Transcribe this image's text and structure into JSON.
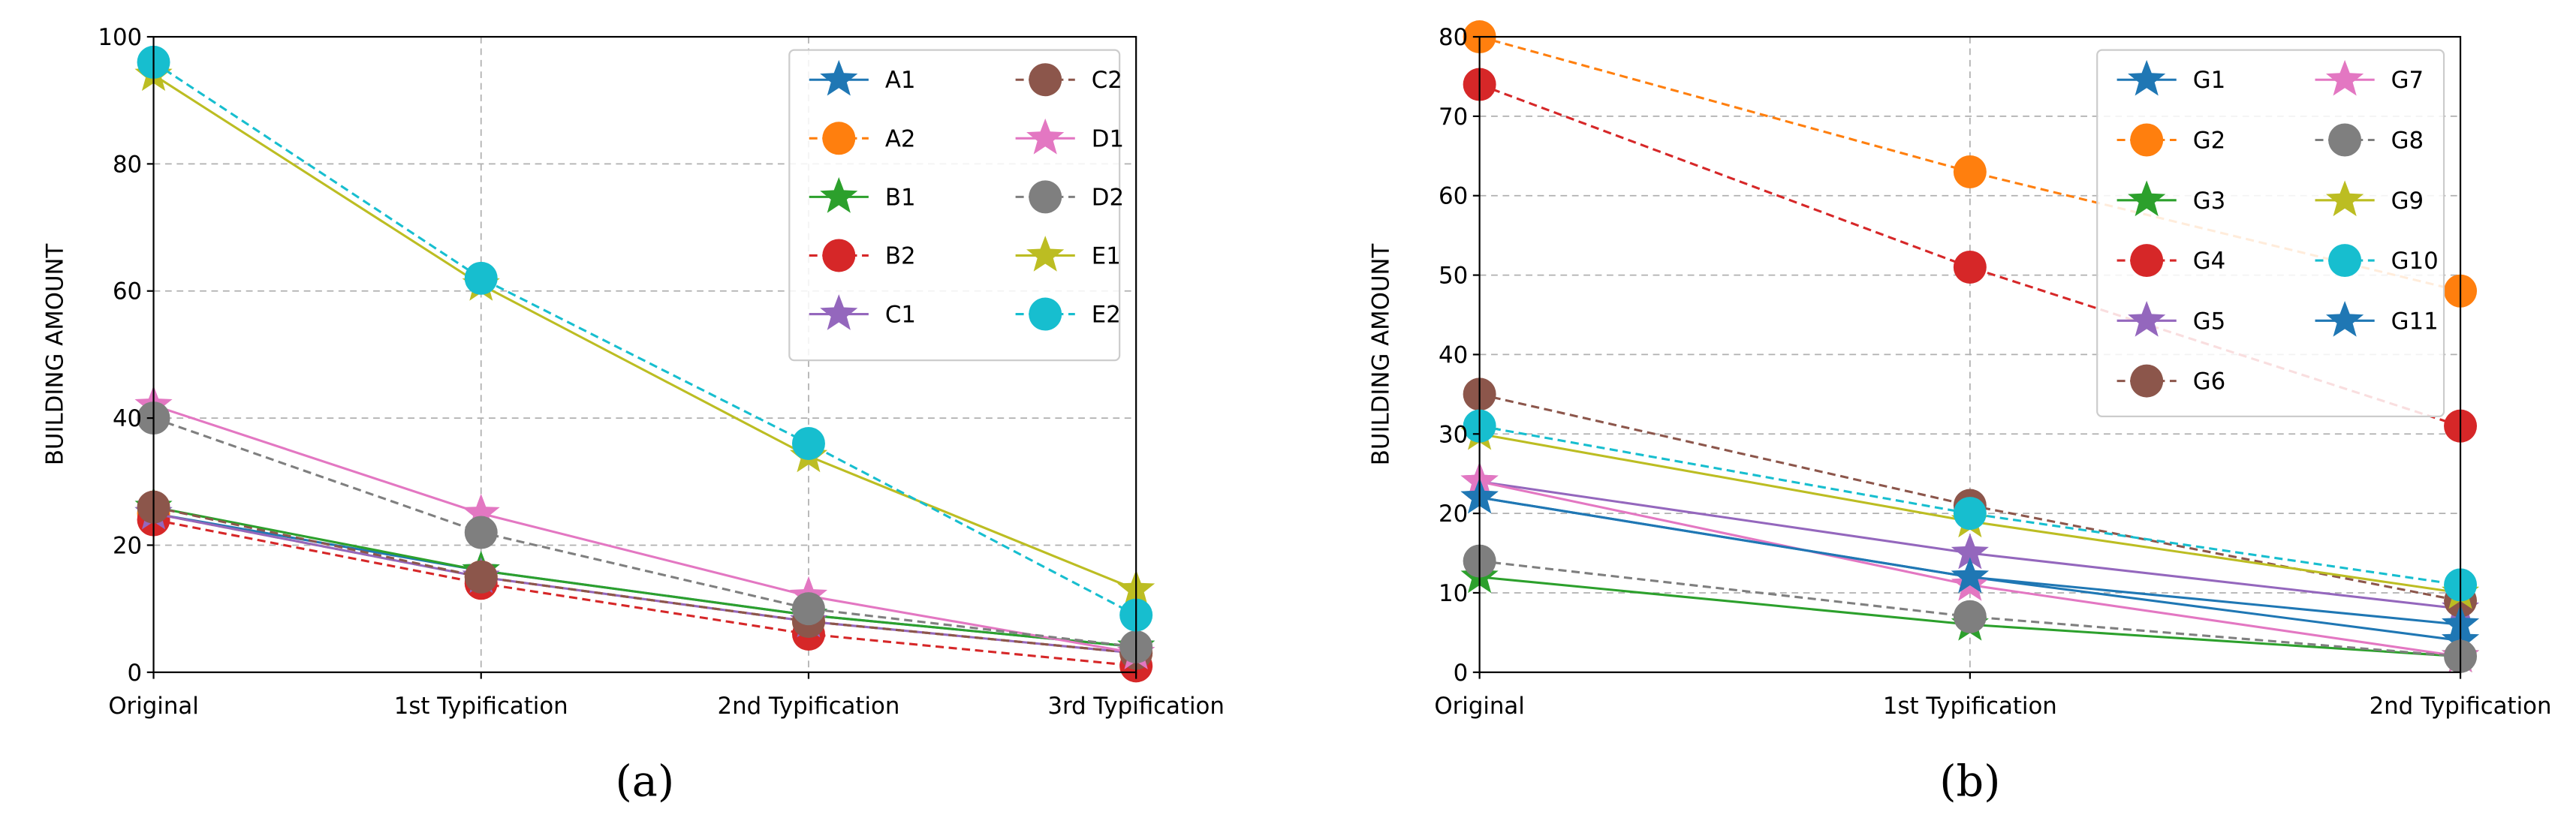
{
  "chart_data": [
    {
      "type": "line",
      "caption": "(a)",
      "ylabel": "BUILDING AMOUNT",
      "xlabel": "",
      "ylim": [
        0,
        100
      ],
      "yticks": [
        0,
        20,
        40,
        60,
        80,
        100
      ],
      "grid": true,
      "legend_position": "top-right",
      "legend_columns": 2,
      "categories": [
        "Original",
        "1st Typification",
        "2nd Typification",
        "3rd Typification"
      ],
      "series": [
        {
          "name": "A1",
          "color": "#1f77b4",
          "linestyle": "solid",
          "marker": "star",
          "values": [
            25,
            16,
            9,
            4
          ]
        },
        {
          "name": "A2",
          "color": "#ff7f0e",
          "linestyle": "dashed",
          "marker": "circle",
          "values": [
            25,
            15,
            8,
            3
          ]
        },
        {
          "name": "B1",
          "color": "#2ca02c",
          "linestyle": "solid",
          "marker": "star",
          "values": [
            26,
            16,
            9,
            4
          ]
        },
        {
          "name": "B2",
          "color": "#d62728",
          "linestyle": "dashed",
          "marker": "circle",
          "values": [
            24,
            14,
            6,
            1
          ]
        },
        {
          "name": "C1",
          "color": "#9467bd",
          "linestyle": "solid",
          "marker": "star",
          "values": [
            25,
            15,
            8,
            3
          ]
        },
        {
          "name": "C2",
          "color": "#8c564b",
          "linestyle": "dashed",
          "marker": "circle",
          "values": [
            26,
            15,
            8,
            3
          ]
        },
        {
          "name": "D1",
          "color": "#e377c2",
          "linestyle": "solid",
          "marker": "star",
          "values": [
            42,
            25,
            12,
            3
          ]
        },
        {
          "name": "D2",
          "color": "#7f7f7f",
          "linestyle": "dashed",
          "marker": "circle",
          "values": [
            40,
            22,
            10,
            4
          ]
        },
        {
          "name": "E1",
          "color": "#bcbd22",
          "linestyle": "solid",
          "marker": "star",
          "values": [
            94,
            61,
            34,
            13
          ]
        },
        {
          "name": "E2",
          "color": "#17becf",
          "linestyle": "dashed",
          "marker": "circle",
          "values": [
            96,
            62,
            36,
            9
          ]
        }
      ]
    },
    {
      "type": "line",
      "caption": "(b)",
      "ylabel": "BUILDING AMOUNT",
      "xlabel": "",
      "ylim": [
        0,
        80
      ],
      "yticks": [
        0,
        10,
        20,
        30,
        40,
        50,
        60,
        70,
        80
      ],
      "grid": true,
      "legend_position": "top-right",
      "legend_columns": 2,
      "categories": [
        "Original",
        "1st Typification",
        "2nd Typification"
      ],
      "series": [
        {
          "name": "G1",
          "color": "#1f77b4",
          "linestyle": "solid",
          "marker": "star",
          "values": [
            22,
            12,
            4
          ]
        },
        {
          "name": "G2",
          "color": "#ff7f0e",
          "linestyle": "dashed",
          "marker": "circle",
          "values": [
            80,
            63,
            48
          ]
        },
        {
          "name": "G3",
          "color": "#2ca02c",
          "linestyle": "solid",
          "marker": "star",
          "values": [
            12,
            6,
            2
          ]
        },
        {
          "name": "G4",
          "color": "#d62728",
          "linestyle": "dashed",
          "marker": "circle",
          "values": [
            74,
            51,
            31
          ]
        },
        {
          "name": "G5",
          "color": "#9467bd",
          "linestyle": "solid",
          "marker": "star",
          "values": [
            24,
            15,
            8
          ]
        },
        {
          "name": "G6",
          "color": "#8c564b",
          "linestyle": "dashed",
          "marker": "circle",
          "values": [
            35,
            21,
            9
          ]
        },
        {
          "name": "G7",
          "color": "#e377c2",
          "linestyle": "solid",
          "marker": "star",
          "values": [
            24,
            11,
            2
          ]
        },
        {
          "name": "G8",
          "color": "#7f7f7f",
          "linestyle": "dashed",
          "marker": "circle",
          "values": [
            14,
            7,
            2
          ]
        },
        {
          "name": "G9",
          "color": "#bcbd22",
          "linestyle": "solid",
          "marker": "star",
          "values": [
            30,
            19,
            10
          ]
        },
        {
          "name": "G10",
          "color": "#17becf",
          "linestyle": "dashed",
          "marker": "circle",
          "values": [
            31,
            20,
            11
          ]
        },
        {
          "name": "G11",
          "color": "#1f77b4",
          "linestyle": "solid",
          "marker": "star",
          "values": [
            22,
            12,
            6
          ]
        }
      ]
    }
  ]
}
